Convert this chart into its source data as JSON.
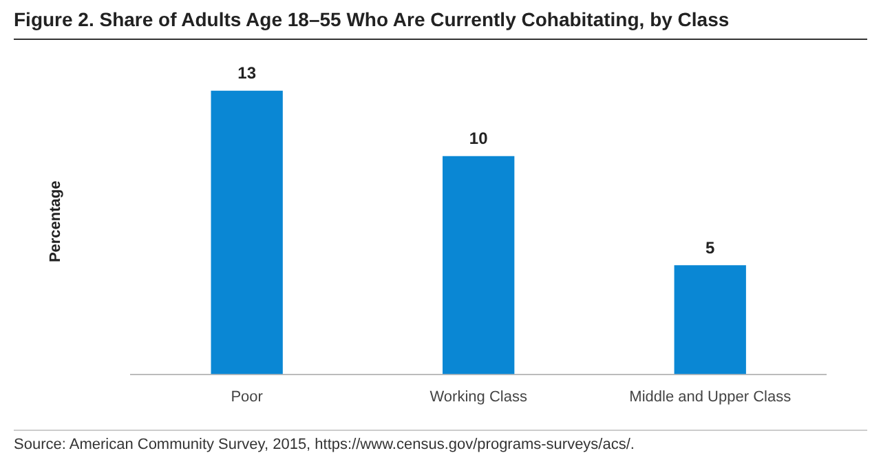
{
  "chart_data": {
    "type": "bar",
    "title": "Figure 2. Share of Adults Age 18–55 Who Are Currently Cohabitating, by Class",
    "ylabel": "Percentage",
    "categories": [
      "Poor",
      "Working Class",
      "Middle and Upper Class"
    ],
    "values": [
      13,
      10,
      5
    ],
    "color": "#0a87d4",
    "data_labels": true,
    "grid": false,
    "legend": false,
    "annotations": [
      "Source: American Community Survey, 2015, https://www.census.gov/programs-surveys/acs/."
    ]
  }
}
